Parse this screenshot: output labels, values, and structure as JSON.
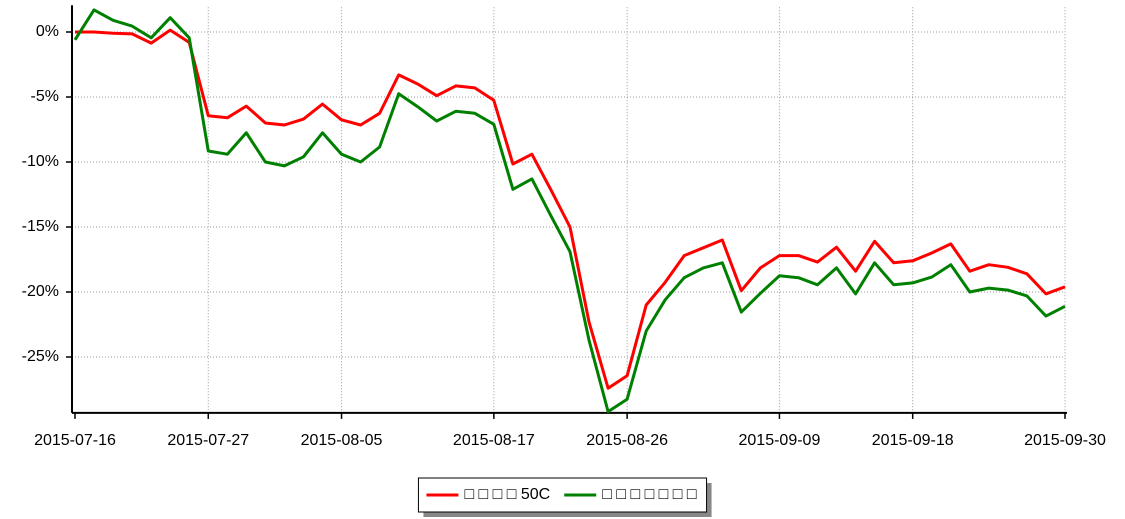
{
  "chart_data": {
    "type": "line",
    "categories": [
      "2015-07-16",
      null,
      null,
      null,
      null,
      null,
      null,
      "2015-07-27",
      null,
      null,
      null,
      null,
      null,
      null,
      "2015-08-05",
      null,
      null,
      null,
      null,
      null,
      null,
      null,
      "2015-08-17",
      null,
      null,
      null,
      null,
      null,
      null,
      "2015-08-26",
      null,
      null,
      null,
      null,
      null,
      null,
      null,
      "2015-09-09",
      null,
      null,
      null,
      null,
      null,
      null,
      "2015-09-18",
      null,
      null,
      null,
      null,
      null,
      null,
      null,
      "2015-09-30"
    ],
    "series": [
      {
        "name": "□ □ □ □ 50C",
        "color": "#ff0000",
        "values": [
          0,
          0,
          -0.1,
          -0.15,
          -0.85,
          0.15,
          -0.8,
          -6.45,
          -6.6,
          -5.7,
          -7.0,
          -7.15,
          -6.7,
          -5.55,
          -6.75,
          -7.15,
          -6.25,
          -3.3,
          -4.0,
          -4.9,
          -4.15,
          -4.3,
          -5.25,
          -10.15,
          -9.4,
          -12.15,
          -15.0,
          -22.3,
          -27.4,
          -26.45,
          -21.0,
          -19.25,
          -17.2,
          -16.6,
          -16.0,
          -19.9,
          -18.15,
          -17.2,
          -17.2,
          -17.7,
          -16.55,
          -18.4,
          -16.1,
          -17.75,
          -17.6,
          -17.0,
          -16.3,
          -18.4,
          -17.9,
          -18.1,
          -18.6,
          -20.15,
          -19.6
        ]
      },
      {
        "name": "□ □ □ □ □ □ □",
        "color": "#008000",
        "values": [
          -0.6,
          1.7,
          0.9,
          0.45,
          -0.45,
          1.1,
          -0.45,
          -9.15,
          -9.4,
          -7.75,
          -10.0,
          -10.3,
          -9.6,
          -7.75,
          -9.4,
          -10.0,
          -8.85,
          -4.75,
          -5.75,
          -6.85,
          -6.1,
          -6.25,
          -7.1,
          -12.1,
          -11.3,
          -14.15,
          -16.9,
          -23.7,
          -29.2,
          -28.25,
          -23.0,
          -20.6,
          -18.9,
          -18.15,
          -17.75,
          -21.55,
          -20.1,
          -18.75,
          -18.9,
          -19.45,
          -18.15,
          -20.15,
          -17.75,
          -19.45,
          -19.3,
          -18.85,
          -17.9,
          -20.0,
          -19.7,
          -19.85,
          -20.3,
          -21.85,
          -21.1
        ]
      }
    ],
    "ylim": [
      -29.3,
      1.9
    ],
    "yticks": [
      {
        "value": 0,
        "label": "0%"
      },
      {
        "value": -5,
        "label": "-5%"
      },
      {
        "value": -10,
        "label": "-10%"
      },
      {
        "value": -15,
        "label": "-15%"
      },
      {
        "value": -20,
        "label": "-20%"
      },
      {
        "value": -25,
        "label": "-25%"
      }
    ],
    "grid": true,
    "legend": "bottom"
  }
}
